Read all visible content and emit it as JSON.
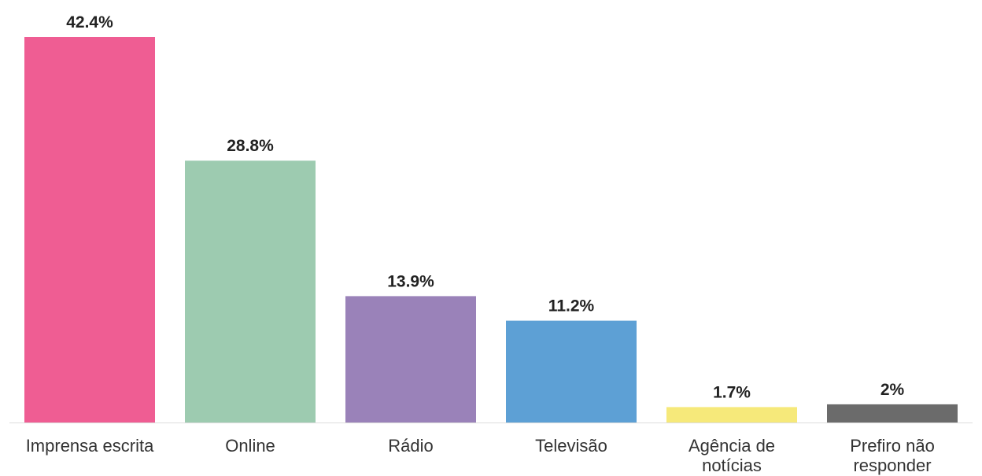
{
  "chart_data": {
    "type": "bar",
    "categories": [
      "Imprensa escrita",
      "Online",
      "Rádio",
      "Televisão",
      "Agência de notícias",
      "Prefiro não responder"
    ],
    "category_label_lines": [
      [
        "Imprensa escrita"
      ],
      [
        "Online"
      ],
      [
        "Rádio"
      ],
      [
        "Televisão"
      ],
      [
        "Agência de",
        "notícias"
      ],
      [
        "Prefiro não",
        "responder"
      ]
    ],
    "values": [
      42.4,
      28.8,
      13.9,
      11.2,
      1.7,
      2
    ],
    "value_labels": [
      "42.4%",
      "28.8%",
      "13.9%",
      "11.2%",
      "1.7%",
      "2%"
    ],
    "colors": [
      "#ef5d93",
      "#9dcbb0",
      "#9a82b9",
      "#5da0d5",
      "#f6e97a",
      "#6b6b6b"
    ],
    "ylim": [
      0,
      42.4
    ],
    "grid": false,
    "legend": "none"
  }
}
